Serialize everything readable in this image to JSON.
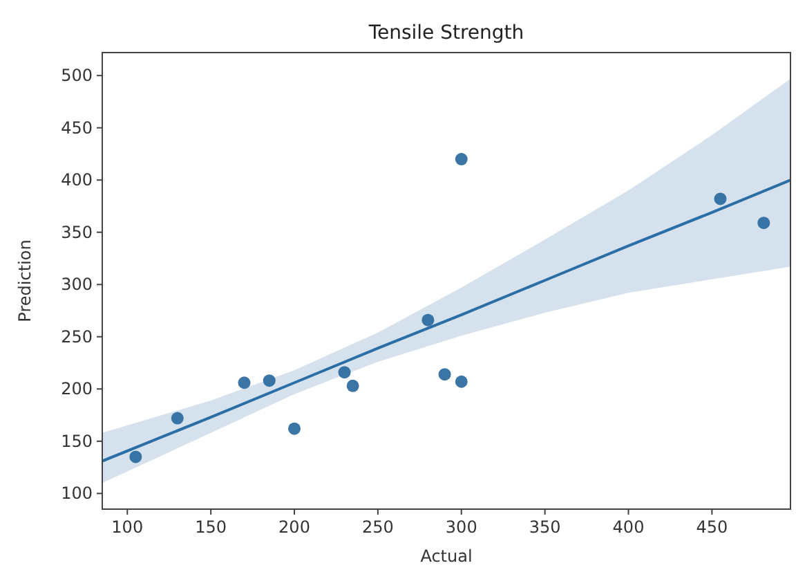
{
  "chart_data": {
    "type": "scatter",
    "title": "Tensile Strength",
    "xlabel": "Actual",
    "ylabel": "Prediction",
    "xlim": [
      85,
      497
    ],
    "ylim": [
      85,
      522
    ],
    "xticks": [
      100,
      150,
      200,
      250,
      300,
      350,
      400,
      450
    ],
    "yticks": [
      100,
      150,
      200,
      250,
      300,
      350,
      400,
      450,
      500
    ],
    "grid": false,
    "series": [
      {
        "type": "scatter",
        "marker": "circle",
        "color": "#3b75a5",
        "x": [
          105,
          130,
          170,
          185,
          200,
          230,
          235,
          280,
          290,
          300,
          300,
          455,
          481
        ],
        "values": [
          135,
          172,
          206,
          208,
          162,
          216,
          203,
          266,
          214,
          207,
          420,
          382,
          359
        ]
      },
      {
        "type": "line",
        "color": "#2b6ea5",
        "line_style": "solid",
        "x": [
          85,
          150,
          200,
          250,
          300,
          350,
          400,
          450,
          497
        ],
        "values": [
          131,
          173,
          206,
          239,
          271,
          304,
          337,
          369,
          400
        ],
        "lower": [
          110,
          158,
          195,
          226,
          251,
          273,
          292,
          305,
          317
        ],
        "upper": [
          158,
          189,
          218,
          254,
          297,
          343,
          390,
          443,
          497
        ]
      }
    ]
  }
}
